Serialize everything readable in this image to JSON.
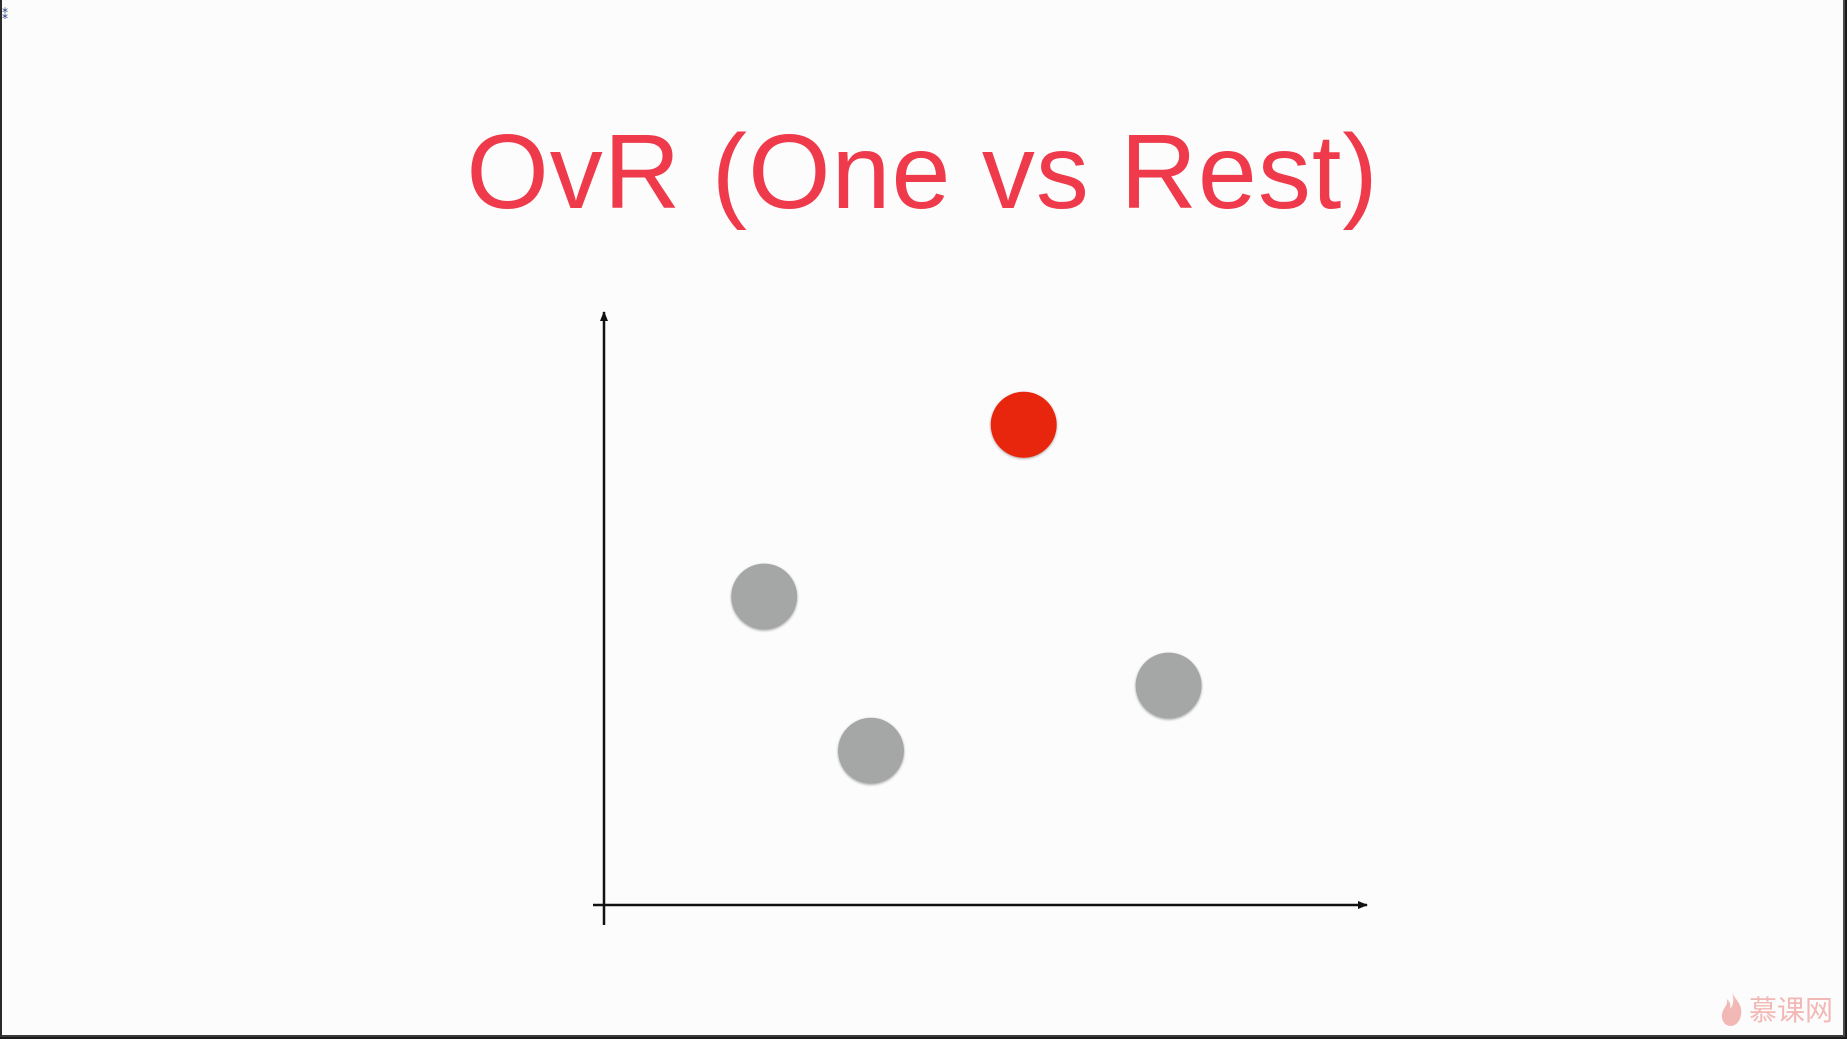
{
  "slide": {
    "title": "OvR (One vs Rest)",
    "title_color": "#ee3a4a",
    "watermark_text": "慕课网",
    "watermark_icon": "flame-logo-icon"
  },
  "chart_data": {
    "type": "scatter",
    "title": "OvR (One vs Rest)",
    "xlabel": "",
    "ylabel": "",
    "xlim": [
      0,
      10
    ],
    "ylim": [
      0,
      10
    ],
    "grid": false,
    "axes": "arrows",
    "series": [
      {
        "color": "#e8260a",
        "points": [
          {
            "x": 5.5,
            "y": 8.1
          }
        ]
      },
      {
        "color": "#a5a7a6",
        "points": [
          {
            "x": 2.1,
            "y": 5.2
          },
          {
            "x": 3.5,
            "y": 2.6
          },
          {
            "x": 7.4,
            "y": 3.7
          }
        ]
      }
    ]
  }
}
